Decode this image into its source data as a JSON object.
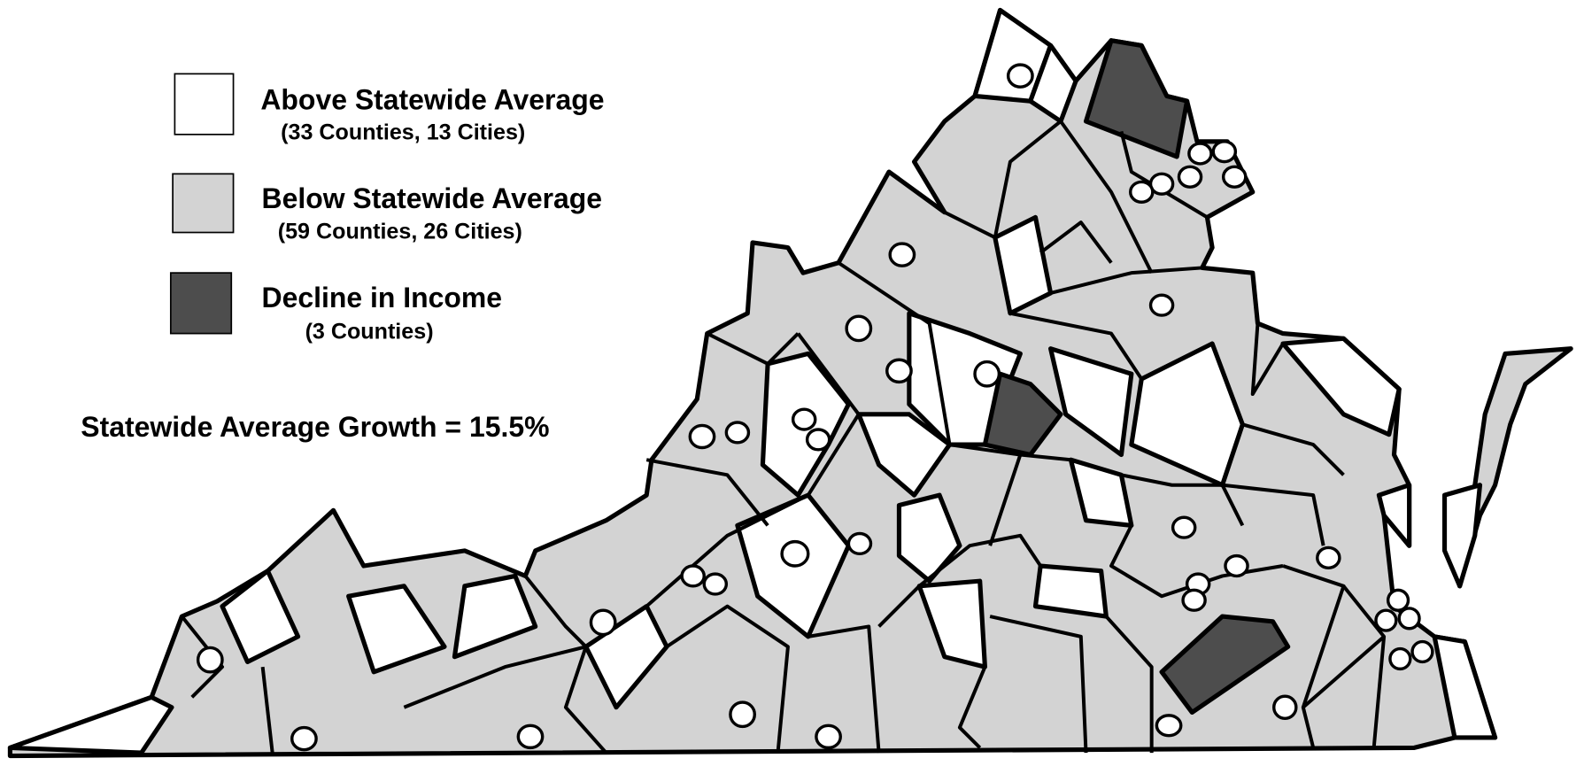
{
  "legend": [
    {
      "label": "Above Statewide Average",
      "sublabel": "(33 Counties, 13 Cities)"
    },
    {
      "label": "Below Statewide Average",
      "sublabel": "(59 Counties, 26 Cities)"
    },
    {
      "label": "Decline in Income",
      "sublabel": "(3 Counties)"
    }
  ],
  "note": "Statewide Average Growth = 15.5%"
}
